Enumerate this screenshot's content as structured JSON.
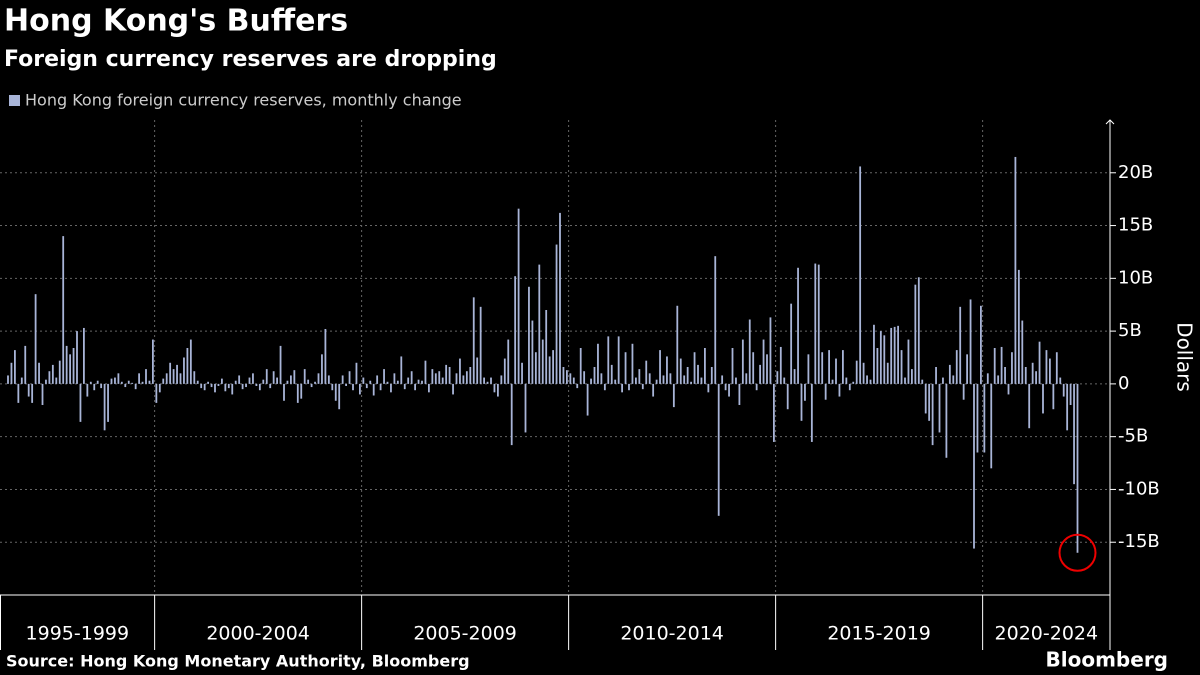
{
  "chart_data": {
    "type": "bar",
    "title": "Hong Kong's Buffers",
    "subtitle": "Foreign currency reserves are dropping",
    "series": [
      {
        "name": "Hong Kong foreign currency reserves, monthly change",
        "color": "#a9b5d8",
        "groups": [
          {
            "label": "1995-1999",
            "values": [
              0.8,
              2.0,
              3.2,
              -1.8,
              0.6,
              3.6,
              -1.2,
              -1.8,
              8.5,
              2.0,
              -2.0,
              0.4,
              1.2,
              1.8,
              0.6,
              2.2,
              14.0,
              3.6,
              2.8,
              3.4,
              5.0,
              -3.6,
              5.3,
              -1.2,
              0.2,
              -0.6,
              0.3,
              -0.4,
              -4.4,
              -3.6,
              0.5,
              0.6,
              1.0,
              0.2,
              -0.3,
              0.3,
              0.1,
              -0.5,
              1.0,
              0.2,
              1.4,
              0.3,
              4.2
            ]
          },
          {
            "label": "2000-2004",
            "values": [
              -1.8,
              -0.8,
              0.5,
              1.0,
              2.0,
              1.4,
              1.8,
              1.0,
              2.5,
              3.4,
              4.2,
              1.2,
              0.3,
              -0.4,
              -0.6,
              0.2,
              -0.3,
              -0.8,
              -0.2,
              0.5,
              -0.7,
              -0.4,
              -1.0,
              0.3,
              0.8,
              -0.5,
              -0.3,
              0.6,
              1.0,
              -0.2,
              -0.6,
              0.4,
              1.4,
              -0.4,
              1.2,
              0.6,
              3.6,
              -1.6,
              0.3,
              0.8,
              1.3,
              -1.8,
              -1.4,
              1.4,
              0.4,
              -0.3,
              0.2,
              1.0,
              2.8,
              5.2,
              0.8,
              -0.6,
              -1.6,
              -2.4,
              0.8,
              -0.2,
              1.2,
              -0.6,
              2.0,
              -1.0
            ]
          },
          {
            "label": "2005-2009",
            "values": [
              0.6,
              -0.4,
              0.3,
              -1.1,
              0.8,
              -0.6,
              1.4,
              0.2,
              -0.8,
              1.0,
              0.3,
              2.6,
              -0.5,
              0.6,
              1.2,
              -0.6,
              0.4,
              0.3,
              2.2,
              -0.8,
              1.4,
              1.0,
              1.2,
              0.6,
              1.8,
              1.6,
              -1.0,
              1.0,
              2.4,
              0.8,
              1.2,
              1.6,
              8.2,
              2.5,
              7.3,
              0.6,
              0.2,
              0.6,
              -0.8,
              -1.2,
              0.8,
              2.4,
              4.2,
              -5.8,
              10.2,
              16.6,
              2.0,
              -4.6,
              9.2,
              6.0,
              3.0,
              11.3,
              4.2,
              7.0,
              2.6,
              3.2,
              13.2,
              16.2,
              1.6,
              1.3
            ]
          },
          {
            "label": "2010-2014",
            "values": [
              1.0,
              0.6,
              -0.4,
              3.4,
              1.2,
              -3.0,
              0.5,
              1.6,
              3.8,
              1.0,
              -0.6,
              4.5,
              1.8,
              0.4,
              4.5,
              -0.8,
              3.0,
              -0.6,
              3.8,
              0.6,
              1.4,
              -0.5,
              2.2,
              1.0,
              -1.2,
              0.4,
              3.2,
              0.8,
              2.6,
              1.0,
              -2.2,
              7.4,
              2.4,
              0.8,
              1.6,
              0.2,
              3.0,
              1.8,
              0.6,
              3.4,
              -0.8,
              1.6,
              12.1,
              -12.5,
              0.8,
              -0.6,
              -1.2,
              3.4,
              0.6,
              -2.0,
              4.2,
              1.0,
              6.1,
              3.0,
              -0.6,
              1.8,
              4.2,
              2.8,
              6.3,
              -5.5
            ]
          },
          {
            "label": "2015-2019",
            "values": [
              1.2,
              3.5,
              0.6,
              -2.4,
              7.6,
              1.4,
              11.0,
              -3.5,
              -1.6,
              2.8,
              -5.5,
              11.4,
              11.3,
              3.0,
              -1.5,
              3.2,
              0.4,
              2.4,
              -1.2,
              3.2,
              0.6,
              -0.6,
              0.2,
              2.2,
              20.6,
              2.0,
              0.8,
              0.4,
              5.6,
              3.4,
              5.0,
              4.6,
              2.0,
              5.3,
              5.4,
              5.5,
              3.2,
              0.6,
              4.2,
              1.4,
              9.4,
              10.1,
              0.4,
              -2.8,
              -3.5,
              -5.8,
              1.6,
              -4.6,
              0.6,
              -7.0,
              1.8,
              0.8,
              3.2,
              7.3,
              -1.5,
              2.8,
              8.0,
              -15.6,
              -6.5,
              7.4
            ]
          },
          {
            "label": "2020-2024",
            "values": [
              -6.5,
              1.0,
              -8.0,
              3.4,
              0.8,
              3.5,
              1.6,
              -1.0,
              3.0,
              21.5,
              10.8,
              6.0,
              1.6,
              -4.2,
              2.0,
              1.2,
              4.0,
              -2.8,
              3.2,
              2.4,
              -2.4,
              3.0,
              0.6,
              -1.2,
              -4.4,
              -2.0,
              -9.5,
              -16.0
            ]
          }
        ]
      }
    ],
    "ylim": [
      -20,
      25
    ],
    "yticks": [
      {
        "value": -15,
        "label": "-15B"
      },
      {
        "value": -10,
        "label": "-10B"
      },
      {
        "value": -5,
        "label": "-5B"
      },
      0,
      {
        "value": 5,
        "label": "5B"
      },
      {
        "value": 10,
        "label": "10B"
      },
      {
        "value": 15,
        "label": "15B"
      },
      {
        "value": 20,
        "label": "20B"
      }
    ],
    "y_label": "Dollars",
    "grid": true,
    "source": "Source: Hong Kong Monetary Authority, Bloomberg",
    "brand": "Bloomberg"
  }
}
